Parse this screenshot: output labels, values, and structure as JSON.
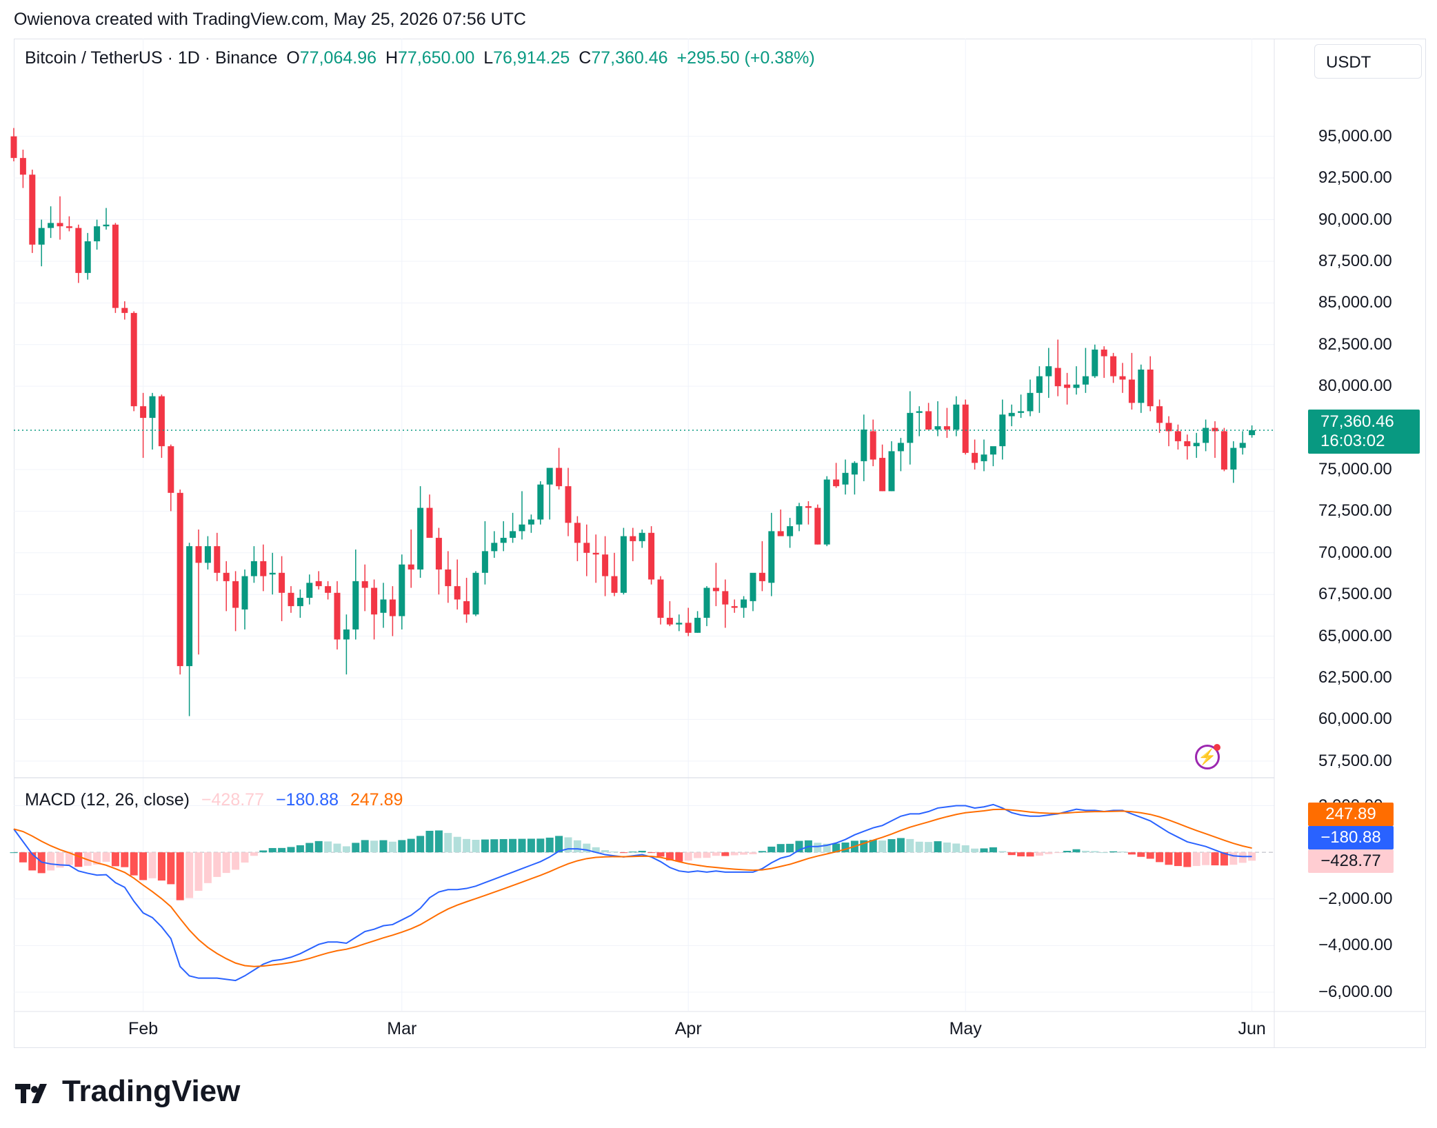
{
  "header": {
    "attribution": "Owienova created with TradingView.com, May 25, 2026 07:56 UTC"
  },
  "legend": {
    "symbol": "Bitcoin / TetherUS · 1D · Binance",
    "o_label": "O",
    "o_value": "77,064.96",
    "h_label": "H",
    "h_value": "77,650.00",
    "l_label": "L",
    "l_value": "76,914.25",
    "c_label": "C",
    "c_value": "77,360.46",
    "change": "+295.50 (+0.38%)"
  },
  "currency_button": "USDT",
  "last_price": {
    "price": "77,360.46",
    "countdown": "16:03:02"
  },
  "macd_legend": {
    "name": "MACD (12, 26, close)",
    "hist": "−428.77",
    "macd": "−180.88",
    "signal": "247.89"
  },
  "macd_badges": {
    "signal": "247.89",
    "macd": "−180.88",
    "hist": "−428.77"
  },
  "footer": {
    "brand": "TradingView"
  },
  "colors": {
    "up": "#089981",
    "down": "#f23645",
    "macd_line": "#2962ff",
    "signal_line": "#ff6d00",
    "hist_up_strong": "#26a69a",
    "hist_up_weak": "#b2dfdb",
    "hist_down_strong": "#ff5252",
    "hist_down_weak": "#ffcdd2"
  },
  "icons": {
    "flash": "flash-icon",
    "logo": "tradingview-logo-icon"
  },
  "chart_data": {
    "type": "candlestick",
    "y_axis_labels": [
      "95,000.00",
      "92,500.00",
      "90,000.00",
      "87,500.00",
      "85,000.00",
      "82,500.00",
      "80,000.00",
      "75,000.00",
      "72,500.00",
      "70,000.00",
      "67,500.00",
      "65,000.00",
      "62,500.00",
      "60,000.00",
      "57,500.00"
    ],
    "y_ticks": [
      95000,
      92500,
      90000,
      87500,
      85000,
      82500,
      80000,
      75000,
      72500,
      70000,
      67500,
      65000,
      62500,
      60000,
      57500
    ],
    "ylim": [
      56500,
      98300
    ],
    "x_axis_labels": [
      "Feb",
      "Mar",
      "Apr",
      "May",
      "Jun"
    ],
    "x_ticks_day_index": [
      14,
      42,
      73,
      103,
      134
    ],
    "start_date": "2026-01-18",
    "ohlc": [
      [
        95000,
        95500,
        93500,
        93700
      ],
      [
        93700,
        94200,
        91900,
        92700
      ],
      [
        92700,
        93000,
        88000,
        88500
      ],
      [
        88500,
        90000,
        87200,
        89500
      ],
      [
        89500,
        90800,
        88900,
        89800
      ],
      [
        89800,
        91400,
        88800,
        89600
      ],
      [
        89600,
        90200,
        89300,
        89500
      ],
      [
        89500,
        89700,
        86200,
        86800
      ],
      [
        86800,
        89200,
        86400,
        88700
      ],
      [
        88700,
        90000,
        88200,
        89600
      ],
      [
        89600,
        90700,
        89400,
        89700
      ],
      [
        89700,
        89800,
        84400,
        84700
      ],
      [
        84700,
        85100,
        84000,
        84400
      ],
      [
        84400,
        84500,
        78500,
        78800
      ],
      [
        78800,
        79600,
        75700,
        78100
      ],
      [
        78100,
        79600,
        76200,
        79400
      ],
      [
        79400,
        79500,
        75700,
        76400
      ],
      [
        76400,
        76500,
        72500,
        73600
      ],
      [
        73600,
        73800,
        62700,
        63200
      ],
      [
        63200,
        70600,
        60200,
        70400
      ],
      [
        70400,
        71400,
        63900,
        69400
      ],
      [
        69400,
        71000,
        69000,
        70400
      ],
      [
        70400,
        71200,
        68300,
        68800
      ],
      [
        68800,
        69500,
        66500,
        68300
      ],
      [
        68300,
        68900,
        65300,
        66700
      ],
      [
        66600,
        69000,
        65400,
        68600
      ],
      [
        68600,
        70400,
        68200,
        69500
      ],
      [
        69500,
        70500,
        67700,
        68600
      ],
      [
        68700,
        70000,
        67500,
        68800
      ],
      [
        68800,
        69800,
        65900,
        67600
      ],
      [
        67600,
        68000,
        66400,
        66800
      ],
      [
        66800,
        67800,
        66100,
        67300
      ],
      [
        67300,
        68700,
        66900,
        68200
      ],
      [
        68300,
        68900,
        67800,
        68000
      ],
      [
        68000,
        68300,
        67200,
        67600
      ],
      [
        67600,
        68300,
        64200,
        64800
      ],
      [
        64800,
        66300,
        62700,
        65400
      ],
      [
        65400,
        70200,
        64800,
        68300
      ],
      [
        68300,
        69300,
        66500,
        67900
      ],
      [
        67900,
        68400,
        64800,
        66300
      ],
      [
        66400,
        68200,
        65500,
        67200
      ],
      [
        67200,
        68000,
        65000,
        66200
      ],
      [
        66200,
        69900,
        65400,
        69300
      ],
      [
        69300,
        71400,
        67900,
        69000
      ],
      [
        69000,
        74000,
        68500,
        72700
      ],
      [
        72700,
        73500,
        70900,
        70900
      ],
      [
        70900,
        71500,
        67500,
        69000
      ],
      [
        69000,
        70100,
        67000,
        68000
      ],
      [
        68000,
        69600,
        66600,
        67200
      ],
      [
        67100,
        68500,
        65800,
        66300
      ],
      [
        66300,
        68900,
        66200,
        68800
      ],
      [
        68800,
        71900,
        68100,
        70100
      ],
      [
        70100,
        71300,
        69700,
        70600
      ],
      [
        70600,
        71900,
        70100,
        70900
      ],
      [
        70900,
        72400,
        70600,
        71300
      ],
      [
        71300,
        73700,
        70800,
        71700
      ],
      [
        71700,
        72300,
        71200,
        72000
      ],
      [
        72000,
        74300,
        71700,
        74100
      ],
      [
        74100,
        75000,
        72000,
        75100
      ],
      [
        75100,
        76300,
        73800,
        74000
      ],
      [
        74000,
        75100,
        71000,
        71800
      ],
      [
        71800,
        72200,
        69500,
        70600
      ],
      [
        70600,
        71700,
        68600,
        70000
      ],
      [
        70000,
        71100,
        68200,
        69900
      ],
      [
        69900,
        71000,
        67400,
        68600
      ],
      [
        68600,
        70000,
        67400,
        67600
      ],
      [
        67600,
        71500,
        67500,
        71000
      ],
      [
        71000,
        71500,
        69500,
        70700
      ],
      [
        70700,
        71400,
        70300,
        71200
      ],
      [
        71200,
        71600,
        68100,
        68400
      ],
      [
        68400,
        68600,
        65700,
        66100
      ],
      [
        66100,
        67100,
        65600,
        65700
      ],
      [
        65700,
        66300,
        65300,
        65800
      ],
      [
        65800,
        66700,
        65000,
        65200
      ],
      [
        65200,
        66500,
        65200,
        66100
      ],
      [
        66100,
        68000,
        65600,
        67900
      ],
      [
        67900,
        69400,
        66800,
        67700
      ],
      [
        67700,
        68400,
        65500,
        66900
      ],
      [
        66800,
        67200,
        66400,
        66700
      ],
      [
        66700,
        67400,
        66100,
        67200
      ],
      [
        67100,
        68700,
        66500,
        68800
      ],
      [
        68800,
        70700,
        67700,
        68300
      ],
      [
        68200,
        72400,
        67400,
        71300
      ],
      [
        71300,
        72600,
        71300,
        71000
      ],
      [
        71000,
        72100,
        70300,
        71600
      ],
      [
        71700,
        73000,
        71300,
        72800
      ],
      [
        72800,
        73100,
        71700,
        72700
      ],
      [
        72700,
        72900,
        70500,
        70500
      ],
      [
        70500,
        74600,
        70400,
        74400
      ],
      [
        74400,
        75400,
        73900,
        74000
      ],
      [
        74100,
        75600,
        73500,
        74800
      ],
      [
        74700,
        75500,
        73500,
        75400
      ],
      [
        75500,
        78300,
        74300,
        77400
      ],
      [
        77300,
        78000,
        75200,
        75600
      ],
      [
        75700,
        76500,
        73700,
        73700
      ],
      [
        73700,
        76700,
        73700,
        76100
      ],
      [
        76100,
        76900,
        74900,
        76600
      ],
      [
        76600,
        79700,
        75300,
        78400
      ],
      [
        78400,
        78800,
        77000,
        78500
      ],
      [
        78500,
        79000,
        77400,
        77400
      ],
      [
        77400,
        79100,
        77000,
        77600
      ],
      [
        77600,
        78700,
        76900,
        77400
      ],
      [
        77400,
        79400,
        77000,
        78900
      ],
      [
        78900,
        79200,
        75900,
        76000
      ],
      [
        76000,
        76800,
        75000,
        75400
      ],
      [
        75500,
        76800,
        74900,
        75900
      ],
      [
        75900,
        76300,
        75200,
        76400
      ],
      [
        76400,
        79200,
        75600,
        78300
      ],
      [
        78200,
        78900,
        77600,
        78400
      ],
      [
        78400,
        79500,
        78100,
        78500
      ],
      [
        78500,
        80400,
        78200,
        79600
      ],
      [
        79600,
        81200,
        78400,
        80600
      ],
      [
        80600,
        82300,
        79300,
        81200
      ],
      [
        81100,
        82800,
        79400,
        80000
      ],
      [
        80100,
        80800,
        78900,
        79900
      ],
      [
        79900,
        81200,
        79500,
        80100
      ],
      [
        80100,
        82300,
        79600,
        80600
      ],
      [
        80600,
        82500,
        80500,
        82200
      ],
      [
        82200,
        82400,
        80500,
        81800
      ],
      [
        81800,
        82000,
        80200,
        80600
      ],
      [
        80600,
        81400,
        79600,
        80400
      ],
      [
        80400,
        82000,
        78600,
        79000
      ],
      [
        79000,
        81300,
        78400,
        81000
      ],
      [
        81000,
        81800,
        78500,
        78800
      ],
      [
        78800,
        79200,
        77200,
        77800
      ],
      [
        77800,
        78200,
        76400,
        77300
      ],
      [
        77300,
        77700,
        76200,
        76700
      ],
      [
        76700,
        77100,
        75600,
        76400
      ],
      [
        76400,
        77200,
        75700,
        76600
      ],
      [
        76600,
        78000,
        76100,
        77500
      ],
      [
        77500,
        77900,
        75700,
        77300
      ],
      [
        77300,
        77500,
        74900,
        75000
      ],
      [
        75000,
        76700,
        74200,
        76300
      ],
      [
        76300,
        77300,
        75900,
        76600
      ],
      [
        77065,
        77650,
        76914,
        77360
      ]
    ],
    "macd_axis_labels": [
      "2,000.00",
      "−2,000.00",
      "−4,000.00",
      "−6,000.00"
    ],
    "macd_ticks": [
      2000,
      -2000,
      -4000,
      -6000
    ],
    "macd_ylim": [
      -6800,
      3200
    ],
    "macd": [
      1000,
      460,
      -80,
      -420,
      -500,
      -540,
      -560,
      -800,
      -900,
      -980,
      -960,
      -1300,
      -1500,
      -2100,
      -2600,
      -2800,
      -3200,
      -3700,
      -4900,
      -5300,
      -5400,
      -5400,
      -5400,
      -5450,
      -5500,
      -5300,
      -5050,
      -4800,
      -4650,
      -4600,
      -4500,
      -4350,
      -4150,
      -3950,
      -3850,
      -3850,
      -3900,
      -3650,
      -3400,
      -3300,
      -3150,
      -3100,
      -2900,
      -2700,
      -2400,
      -1950,
      -1700,
      -1600,
      -1600,
      -1550,
      -1450,
      -1300,
      -1150,
      -1000,
      -850,
      -700,
      -550,
      -400,
      -200,
      50,
      150,
      150,
      100,
      0,
      -100,
      -150,
      -200,
      -150,
      -100,
      -200,
      -400,
      -650,
      -800,
      -850,
      -800,
      -850,
      -800,
      -850,
      -850,
      -850,
      -850,
      -700,
      -450,
      -250,
      -150,
      100,
      250,
      250,
      300,
      400,
      550,
      750,
      900,
      1050,
      1150,
      1350,
      1550,
      1650,
      1650,
      1750,
      1900,
      1950,
      2000,
      2000,
      1900,
      1950,
      2050,
      1900,
      1700,
      1600,
      1550,
      1550,
      1600,
      1650,
      1750,
      1850,
      1800,
      1800,
      1750,
      1800,
      1800,
      1650,
      1500,
      1350,
      1100,
      850,
      650,
      450,
      350,
      250,
      100,
      -50,
      -150,
      -180,
      -180
    ]
  }
}
